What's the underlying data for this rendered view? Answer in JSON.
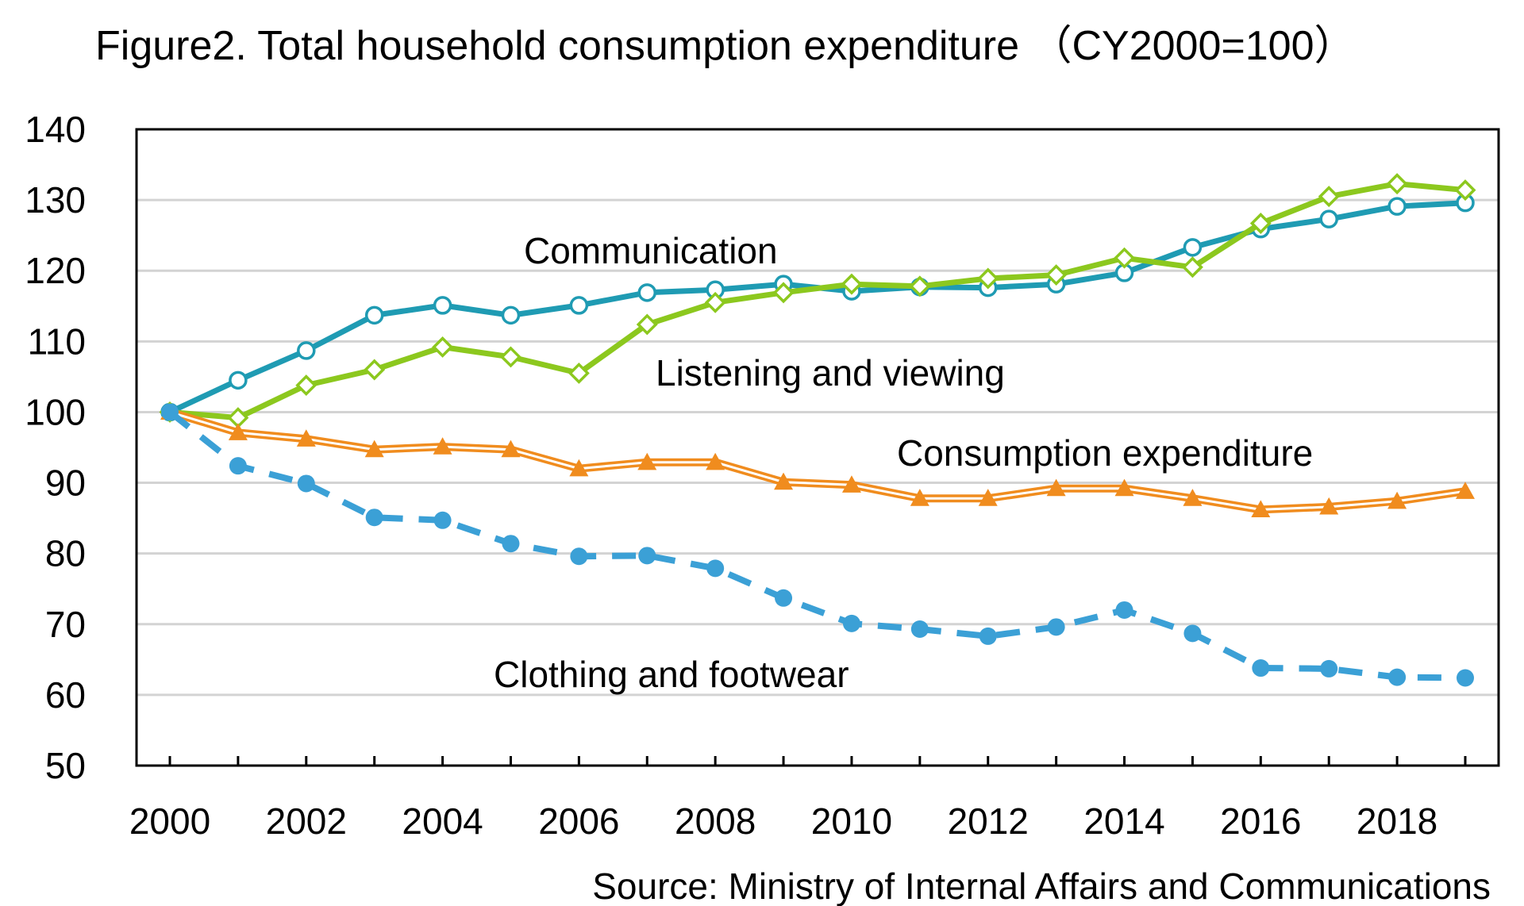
{
  "chart_data": {
    "type": "line",
    "title": "Figure2. Total household consumption expenditure （CY2000=100）",
    "source": "Source: Ministry of Internal Affairs and Communications",
    "xlabel": "",
    "ylabel": "",
    "xlim": [
      2000,
      2019
    ],
    "ylim": [
      50,
      140
    ],
    "yticks": [
      140,
      130,
      120,
      110,
      100,
      90,
      80,
      70,
      60,
      50
    ],
    "xtick_labels": [
      "2000",
      "2002",
      "2004",
      "2006",
      "2008",
      "2010",
      "2012",
      "2014",
      "2016",
      "2018"
    ],
    "grid": "horizontal",
    "legend": "inline labels",
    "x": [
      2000,
      2001,
      2002,
      2003,
      2004,
      2005,
      2006,
      2007,
      2008,
      2009,
      2010,
      2011,
      2012,
      2013,
      2014,
      2015,
      2016,
      2017,
      2018,
      2019
    ],
    "series": [
      {
        "name": "Communication",
        "color": "#1f9bb3",
        "marker": "open-circle",
        "line_style": "solid",
        "values": [
          100,
          104.5,
          108.7,
          113.7,
          115.1,
          113.7,
          115.1,
          116.9,
          117.3,
          118.1,
          117.1,
          117.7,
          117.6,
          118.1,
          119.7,
          123.3,
          125.9,
          127.3,
          129.1,
          129.6
        ]
      },
      {
        "name": "Listening and viewing",
        "color": "#8cc81e",
        "marker": "diamond",
        "line_style": "solid",
        "values": [
          100,
          99.2,
          103.8,
          106.0,
          109.2,
          107.8,
          105.5,
          112.4,
          115.5,
          116.9,
          118.1,
          117.8,
          118.9,
          119.4,
          121.8,
          120.5,
          126.7,
          130.5,
          132.3,
          131.4
        ]
      },
      {
        "name": "Consumption expenditure",
        "color": "#f08c1e",
        "marker": "triangle",
        "line_style": "double",
        "values": [
          100,
          97.1,
          96.2,
          94.7,
          95.1,
          94.7,
          92.0,
          92.9,
          92.9,
          90.1,
          89.7,
          87.8,
          87.8,
          89.2,
          89.2,
          87.8,
          86.2,
          86.6,
          87.4,
          88.8
        ]
      },
      {
        "name": "Clothing and footwear",
        "color": "#3ba0d6",
        "marker": "filled-circle",
        "line_style": "dashed",
        "values": [
          100,
          92.4,
          89.9,
          85.1,
          84.7,
          81.4,
          79.6,
          79.7,
          77.9,
          73.7,
          70.1,
          69.3,
          68.3,
          69.6,
          72.0,
          68.7,
          63.8,
          63.7,
          62.5,
          62.4
        ]
      }
    ]
  }
}
